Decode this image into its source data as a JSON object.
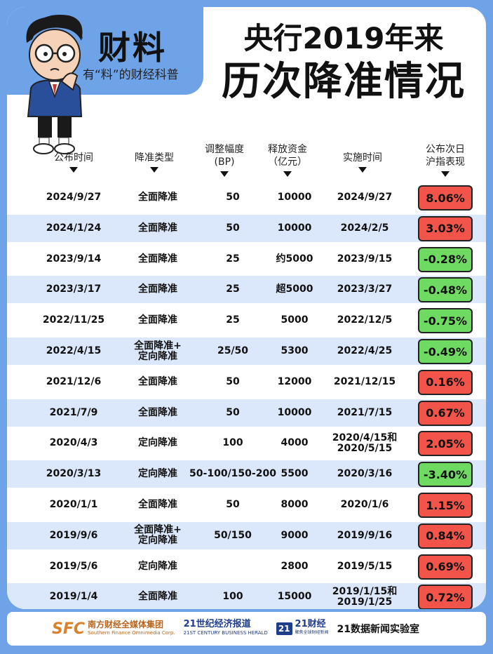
{
  "brand": {
    "title": "财料",
    "subtitle": "有“料”的财经科普"
  },
  "headline": {
    "line1": "央行2019年来",
    "line2": "历次降准情况"
  },
  "columns": [
    {
      "line1": "公布时间",
      "line2": ""
    },
    {
      "line1": "降准类型",
      "line2": ""
    },
    {
      "line1": "调整幅度",
      "line2": "(BP)"
    },
    {
      "line1": "释放资金",
      "line2": "（亿元）"
    },
    {
      "line1": "实施时间",
      "line2": ""
    },
    {
      "line1": "公布次日",
      "line2": "沪指表现"
    }
  ],
  "rows": [
    {
      "announce": "2024/9/27",
      "type": "全面降准",
      "bp": "50",
      "funds": "10000",
      "implement": "2024/9/27",
      "index": "8.06%",
      "trend": "up"
    },
    {
      "announce": "2024/1/24",
      "type": "全面降准",
      "bp": "50",
      "funds": "10000",
      "implement": "2024/2/5",
      "index": "3.03%",
      "trend": "up"
    },
    {
      "announce": "2023/9/14",
      "type": "全面降准",
      "bp": "25",
      "funds": "约5000",
      "implement": "2023/9/15",
      "index": "-0.28%",
      "trend": "down"
    },
    {
      "announce": "2023/3/17",
      "type": "全面降准",
      "bp": "25",
      "funds": "超5000",
      "implement": "2023/3/27",
      "index": "-0.48%",
      "trend": "down"
    },
    {
      "announce": "2022/11/25",
      "type": "全面降准",
      "bp": "25",
      "funds": "5000",
      "implement": "2022/12/5",
      "index": "-0.75%",
      "trend": "down"
    },
    {
      "announce": "2022/4/15",
      "type": "全面降准+\n定向降准",
      "bp": "25/50",
      "funds": "5300",
      "implement": "2022/4/25",
      "index": "-0.49%",
      "trend": "down"
    },
    {
      "announce": "2021/12/6",
      "type": "全面降准",
      "bp": "50",
      "funds": "12000",
      "implement": "2021/12/15",
      "index": "0.16%",
      "trend": "up"
    },
    {
      "announce": "2021/7/9",
      "type": "全面降准",
      "bp": "50",
      "funds": "10000",
      "implement": "2021/7/15",
      "index": "0.67%",
      "trend": "up"
    },
    {
      "announce": "2020/4/3",
      "type": "定向降准",
      "bp": "100",
      "funds": "4000",
      "implement": "2020/4/15和\n2020/5/15",
      "index": "2.05%",
      "trend": "up"
    },
    {
      "announce": "2020/3/13",
      "type": "定向降准",
      "bp": "50-100/150-200",
      "funds": "5500",
      "implement": "2020/3/16",
      "index": "-3.40%",
      "trend": "down"
    },
    {
      "announce": "2020/1/1",
      "type": "全面降准",
      "bp": "50",
      "funds": "8000",
      "implement": "2020/1/6",
      "index": "1.15%",
      "trend": "up"
    },
    {
      "announce": "2019/9/6",
      "type": "全面降准+\n定向降准",
      "bp": "50/150",
      "funds": "9000",
      "implement": "2019/9/16",
      "index": "0.84%",
      "trend": "up"
    },
    {
      "announce": "2019/5/6",
      "type": "定向降准",
      "bp": "",
      "funds": "2800",
      "implement": "2019/5/15",
      "index": "0.69%",
      "trend": "up"
    },
    {
      "announce": "2019/1/4",
      "type": "全面降准",
      "bp": "100",
      "funds": "15000",
      "implement": "2019/1/15和\n2019/1/25",
      "index": "0.72%",
      "trend": "up"
    }
  ],
  "footer": {
    "sfc_mark": "SFC",
    "sfc_cn": "南方财经全媒体集团",
    "sfc_en": "Southern Finance Omnimedia Corp.",
    "herald_cn": "21世纪经济报道",
    "herald_en": "21ST CENTURY BUSINESS HERALD",
    "cj_box": "21",
    "cj_cn": "21财经",
    "cj_en": "聚焦全球财经新闻",
    "lab": "21数据新闻实验室"
  },
  "colors": {
    "background": "#6fa3e8",
    "row_alt": "#dbe8fb",
    "up": "#f2544a",
    "down": "#6fda62"
  }
}
